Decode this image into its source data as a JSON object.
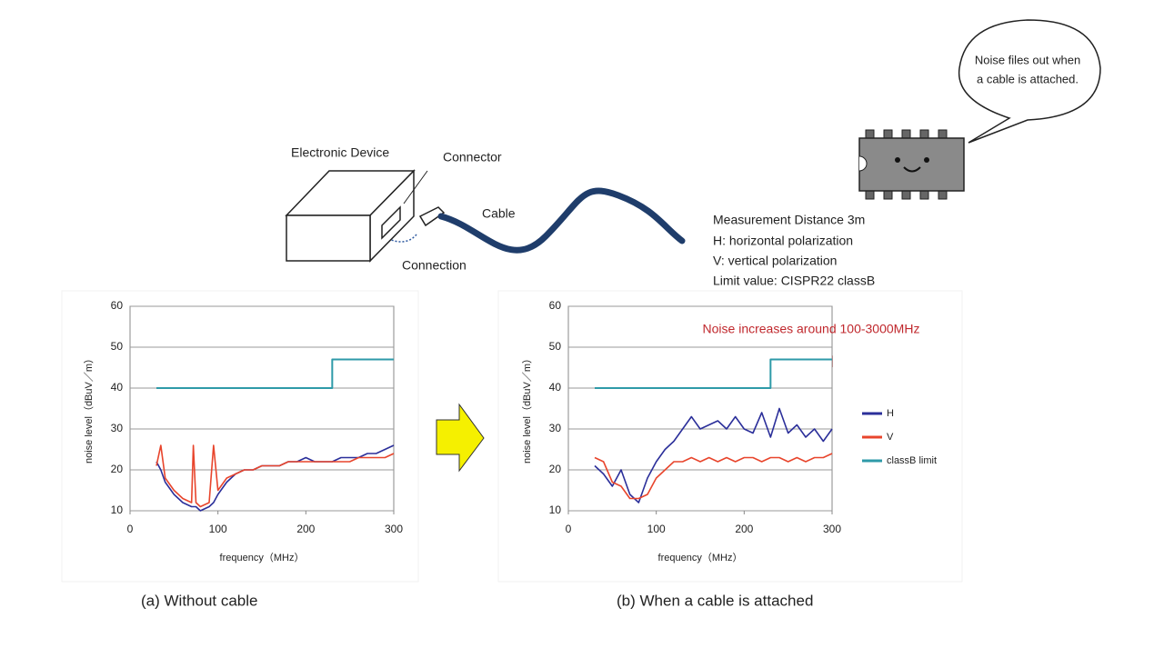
{
  "diagram": {
    "device": "Electronic Device",
    "connector": "Connector",
    "cable": "Cable",
    "connection": "Connection",
    "notes": [
      "Measurement Distance 3m",
      "H: horizontal polarization",
      "V: vertical polarization",
      "Limit value: CISPR22 classB"
    ],
    "bubble": [
      "Noise files out when",
      "a cable is attached."
    ]
  },
  "captions": [
    "(a)   Without cable",
    "(b)   When a cable is attached"
  ],
  "chart_data": [
    {
      "type": "line",
      "x_label": "frequency（MHz）",
      "y_label": "noise level（dBuV／m）",
      "xlim": [
        0,
        300
      ],
      "xticks": [
        0,
        100,
        200,
        300
      ],
      "ylim": [
        10,
        60
      ],
      "yticks": [
        10,
        20,
        30,
        40,
        50,
        60
      ],
      "grid": true,
      "x": [
        30,
        35,
        40,
        50,
        60,
        70,
        72,
        75,
        80,
        90,
        95,
        100,
        110,
        120,
        130,
        140,
        150,
        160,
        170,
        180,
        190,
        200,
        210,
        220,
        230,
        240,
        250,
        260,
        270,
        280,
        290,
        300
      ],
      "series": [
        {
          "color": "#2b2f9a",
          "values": [
            22,
            20,
            17,
            14,
            12,
            11,
            11,
            11,
            10,
            11,
            12,
            14,
            17,
            19,
            20,
            20,
            21,
            21,
            21,
            22,
            22,
            23,
            22,
            22,
            22,
            23,
            23,
            23,
            24,
            24,
            25,
            26
          ]
        },
        {
          "color": "#e8452c",
          "values": [
            21,
            26,
            18,
            15,
            13,
            12,
            26,
            12,
            11,
            12,
            26,
            15,
            18,
            19,
            20,
            20,
            21,
            21,
            21,
            22,
            22,
            22,
            22,
            22,
            22,
            22,
            22,
            23,
            23,
            23,
            23,
            24
          ]
        },
        {
          "color": "#2e9aa8",
          "x": [
            30,
            230,
            230,
            300
          ],
          "values": [
            40,
            40,
            47,
            47
          ]
        }
      ]
    },
    {
      "type": "line",
      "x_label": "frequency（MHz）",
      "y_label": "noise level（dBuV／m）",
      "xlim": [
        0,
        300
      ],
      "xticks": [
        0,
        100,
        200,
        300
      ],
      "ylim": [
        10,
        60
      ],
      "yticks": [
        10,
        20,
        30,
        40,
        50,
        60
      ],
      "grid": true,
      "annotation": "Noise increases around 100-3000MHz",
      "legend": "right",
      "x": [
        30,
        40,
        50,
        60,
        70,
        80,
        90,
        100,
        110,
        120,
        130,
        140,
        150,
        160,
        170,
        180,
        190,
        200,
        210,
        220,
        230,
        240,
        250,
        260,
        270,
        280,
        290,
        300
      ],
      "series": [
        {
          "name": "H",
          "color": "#2b2f9a",
          "values": [
            21,
            19,
            16,
            20,
            14,
            12,
            18,
            22,
            25,
            27,
            30,
            33,
            30,
            31,
            32,
            30,
            33,
            30,
            29,
            34,
            28,
            35,
            29,
            31,
            28,
            30,
            27,
            30
          ]
        },
        {
          "name": "V",
          "color": "#e8452c",
          "values": [
            23,
            22,
            17,
            16,
            13,
            13,
            14,
            18,
            20,
            22,
            22,
            23,
            22,
            23,
            22,
            23,
            22,
            23,
            23,
            22,
            23,
            23,
            22,
            23,
            22,
            23,
            23,
            24
          ]
        },
        {
          "name": "classB limit",
          "color": "#2e9aa8",
          "x": [
            30,
            230,
            230,
            300
          ],
          "values": [
            40,
            40,
            47,
            47
          ]
        }
      ]
    }
  ]
}
